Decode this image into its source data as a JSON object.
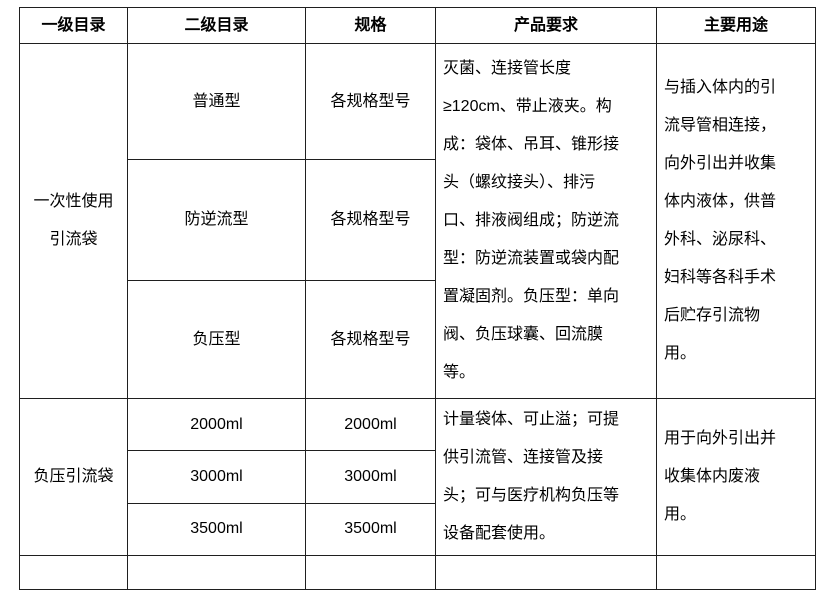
{
  "table": {
    "headers": [
      "一级目录",
      "二级目录",
      "规格",
      "产品要求",
      "主要用途"
    ],
    "groups": [
      {
        "category": "一次性使用\n引流袋",
        "rows": [
          {
            "subcategory": "普通型",
            "spec": "各规格型号"
          },
          {
            "subcategory": "防逆流型",
            "spec": "各规格型号"
          },
          {
            "subcategory": "负压型",
            "spec": "各规格型号"
          }
        ],
        "requirements": "灭菌、连接管长度\n≥120cm、带止液夹。构\n成：袋体、吊耳、锥形接\n头（螺纹接头）、排污\n口、排液阀组成；防逆流\n型：防逆流装置或袋内配\n置凝固剂。负压型：单向\n阀、负压球囊、回流膜\n等。",
        "usage": "与插入体内的引\n流导管相连接，\n向外引出并收集\n体内液体，供普\n外科、泌尿科、\n妇科等各科手术\n后贮存引流物\n用。"
      },
      {
        "category": "负压引流袋",
        "rows": [
          {
            "subcategory": "2000ml",
            "spec": "2000ml"
          },
          {
            "subcategory": "3000ml",
            "spec": "3000ml"
          },
          {
            "subcategory": "3500ml",
            "spec": "3500ml"
          }
        ],
        "requirements": "计量袋体、可止溢；可提\n供引流管、连接管及接\n头；可与医疗机构负压等\n设备配套使用。",
        "usage": "用于向外引出并\n收集体内废液\n用。"
      }
    ],
    "colors": {
      "border": "#1f1f1f",
      "text": "#000000",
      "background": "#ffffff"
    }
  }
}
